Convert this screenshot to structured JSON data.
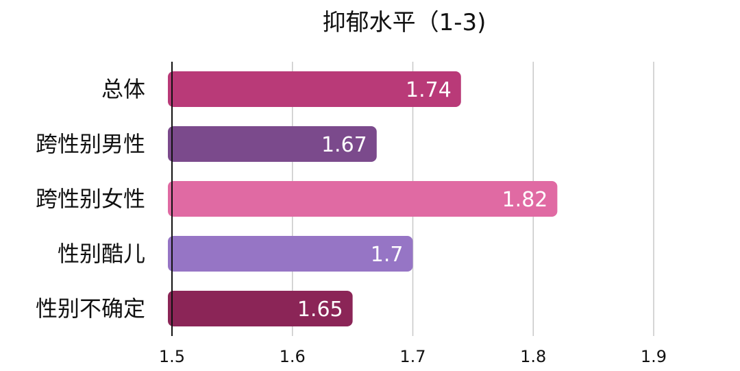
{
  "chart_data": {
    "type": "bar",
    "orientation": "horizontal",
    "title": "抑郁水平（1-3)",
    "xlabel": "",
    "ylabel": "",
    "xlim": [
      1.5,
      1.9
    ],
    "xticks": [
      1.5,
      1.6,
      1.7,
      1.8,
      1.9
    ],
    "xtick_labels": [
      "1.5",
      "1.6",
      "1.7",
      "1.8",
      "1.9"
    ],
    "grid": "vertical",
    "categories": [
      "总体",
      "跨性别男性",
      "跨性别女性",
      "性别酷儿",
      "性别不确定"
    ],
    "values": [
      1.74,
      1.67,
      1.82,
      1.7,
      1.65
    ],
    "value_labels": [
      "1.74",
      "1.67",
      "1.82",
      "1.7",
      "1.65"
    ],
    "colors": [
      "#b93a78",
      "#7b4a8c",
      "#e06aa3",
      "#9675c5",
      "#8b2557"
    ]
  }
}
